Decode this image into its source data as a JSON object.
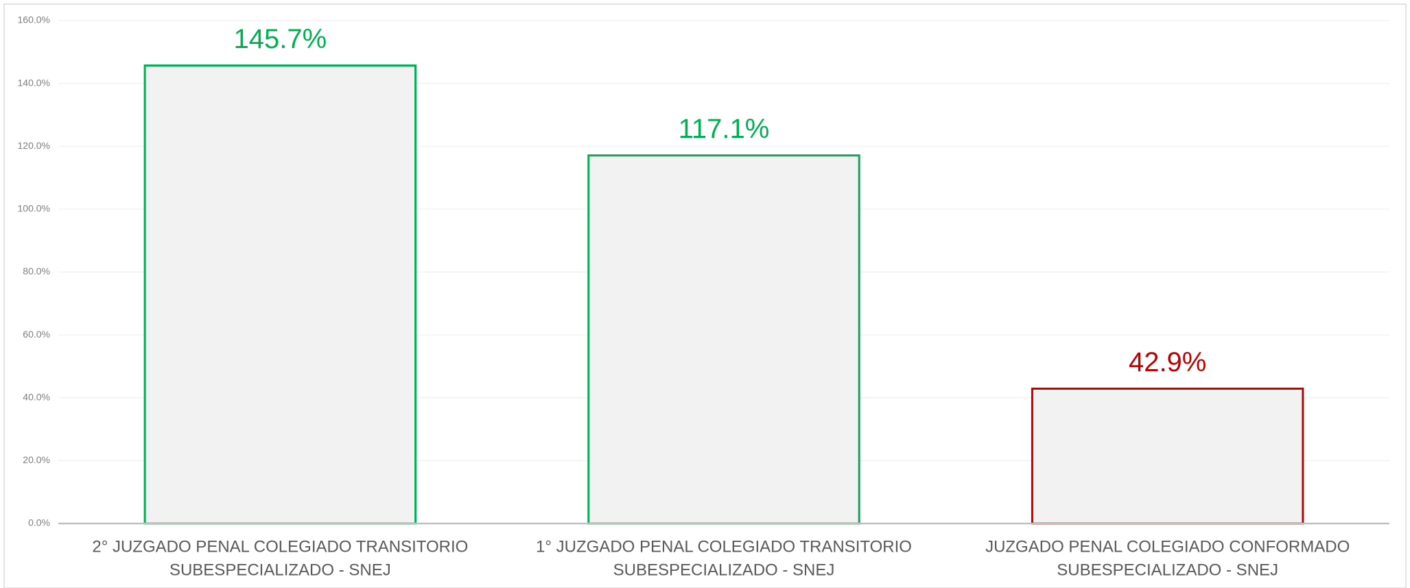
{
  "chart_data": {
    "type": "bar",
    "categories": [
      [
        "2° JUZGADO PENAL COLEGIADO TRANSITORIO",
        "SUBESPECIALIZADO - SNEJ"
      ],
      [
        "1° JUZGADO PENAL COLEGIADO TRANSITORIO",
        "SUBESPECIALIZADO - SNEJ"
      ],
      [
        "JUZGADO PENAL COLEGIADO CONFORMADO",
        "SUBESPECIALIZADO - SNEJ"
      ]
    ],
    "values": [
      145.7,
      117.1,
      42.9
    ],
    "value_labels": [
      "145.7%",
      "117.1%",
      "42.9%"
    ],
    "colors": [
      "#00b050",
      "#00b050",
      "#c00000"
    ],
    "fill": "#f2f2f2",
    "ylim": [
      0,
      160
    ],
    "yticks": [
      {
        "value": 0,
        "label": "0.0%"
      },
      {
        "value": 20,
        "label": "20.0%"
      },
      {
        "value": 40,
        "label": "40.0%"
      },
      {
        "value": 60,
        "label": "60.0%"
      },
      {
        "value": 80,
        "label": "80.0%"
      },
      {
        "value": 100,
        "label": "100.0%"
      },
      {
        "value": 120,
        "label": "120.0%"
      },
      {
        "value": 140,
        "label": "140.0%"
      },
      {
        "value": 160,
        "label": "160.0%"
      }
    ],
    "grid": true
  }
}
